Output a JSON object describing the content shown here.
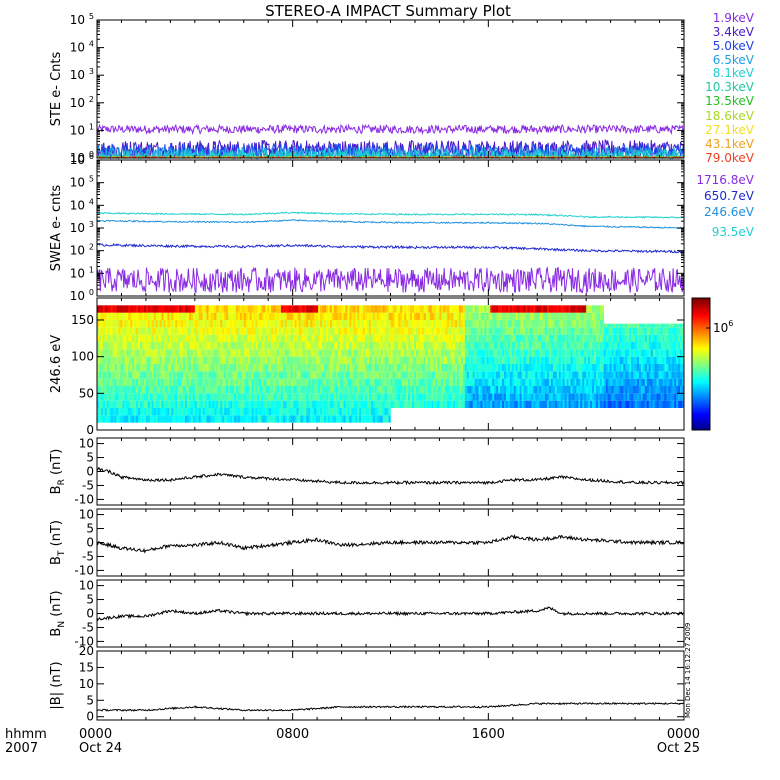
{
  "title": "STEREO-A IMPACT Summary Plot",
  "footer": {
    "row1": "hhmm",
    "row2": "2007",
    "tick_labels": [
      {
        "t": 0,
        "time": "0000",
        "date": "Oct 24"
      },
      {
        "t": 8,
        "time": "0800",
        "date": ""
      },
      {
        "t": 16,
        "time": "1600",
        "date": ""
      },
      {
        "t": 24,
        "time": "0000",
        "date": "Oct 25"
      }
    ]
  },
  "timestamp": "Mon Dec 14 16:12:27 2009",
  "colors": {
    "line": "#000000",
    "axis": "#000000"
  },
  "chart_data": [
    {
      "id": "ste",
      "type": "line",
      "ylabel": "STE e- Cnts",
      "yscale": "log",
      "ylim": [
        1,
        100000
      ],
      "yticks": [
        {
          "v": 1,
          "base": "10",
          "exp": "0"
        },
        {
          "v": 10,
          "base": "10",
          "exp": "1"
        },
        {
          "v": 100,
          "base": "10",
          "exp": "2"
        },
        {
          "v": 1000,
          "base": "10",
          "exp": "3"
        },
        {
          "v": 10000,
          "base": "10",
          "exp": "4"
        },
        {
          "v": 100000,
          "base": "10",
          "exp": "5"
        }
      ],
      "xlim": [
        0,
        24
      ],
      "series": [
        {
          "name": "1.9keV",
          "color": "#8a2be2",
          "level": 11,
          "noise": 0.15
        },
        {
          "name": "3.4keV",
          "color": "#4b18c8",
          "level": 2.0,
          "noise": 0.35
        },
        {
          "name": "5.0keV",
          "color": "#2040e8",
          "level": 1.6,
          "noise": 0.35
        },
        {
          "name": "6.5keV",
          "color": "#1ea0e0",
          "level": 1.25,
          "noise": 0.3
        },
        {
          "name": "8.1keV",
          "color": "#20d0d0",
          "level": 1.1,
          "noise": 0.25
        },
        {
          "name": "10.3keV",
          "color": "#20c8a0",
          "level": 1.0,
          "noise": 0.1
        },
        {
          "name": "13.5keV",
          "color": "#20c020",
          "level": 1.0,
          "noise": 0.05
        },
        {
          "name": "18.6keV",
          "color": "#a8d820",
          "level": 1.0,
          "noise": 0.05
        },
        {
          "name": "27.1keV",
          "color": "#f0e020",
          "level": 1.0,
          "noise": 0.05
        },
        {
          "name": "43.1keV",
          "color": "#f0a020",
          "level": 1.0,
          "noise": 0.05
        },
        {
          "name": "79.0keV",
          "color": "#f04020",
          "level": 1.0,
          "noise": 0.05
        }
      ]
    },
    {
      "id": "swea",
      "type": "line",
      "ylabel": "SWEA e- cnts",
      "yscale": "log",
      "ylim": [
        1,
        1000000
      ],
      "yticks": [
        {
          "v": 1,
          "base": "10",
          "exp": "0"
        },
        {
          "v": 10,
          "base": "10",
          "exp": "1"
        },
        {
          "v": 100,
          "base": "10",
          "exp": "2"
        },
        {
          "v": 1000,
          "base": "10",
          "exp": "3"
        },
        {
          "v": 10000,
          "base": "10",
          "exp": "4"
        },
        {
          "v": 100000,
          "base": "10",
          "exp": "5"
        },
        {
          "v": 1000000,
          "base": "10",
          "exp": "6"
        }
      ],
      "xlim": [
        0,
        24
      ],
      "series": [
        {
          "name": "1716.8eV",
          "color": "#8a2be2",
          "points": [
            [
              0,
              5
            ],
            [
              3,
              5
            ],
            [
              6,
              5
            ],
            [
              9,
              5
            ],
            [
              12,
              5
            ],
            [
              15,
              5
            ],
            [
              18,
              5
            ],
            [
              21,
              5
            ],
            [
              24,
              5
            ]
          ],
          "noise": 0.55
        },
        {
          "name": "650.7eV",
          "color": "#1e2ad0",
          "points": [
            [
              0,
              180
            ],
            [
              3,
              160
            ],
            [
              6,
              150
            ],
            [
              8,
              170
            ],
            [
              10,
              150
            ],
            [
              13,
              140
            ],
            [
              16,
              140
            ],
            [
              18,
              120
            ],
            [
              20,
              100
            ],
            [
              22,
              95
            ],
            [
              24,
              90
            ]
          ],
          "noise": 0.05
        },
        {
          "name": "246.6eV",
          "color": "#1e90e0",
          "points": [
            [
              0,
              2100
            ],
            [
              3,
              1900
            ],
            [
              6,
              1800
            ],
            [
              8,
              2200
            ],
            [
              10,
              1900
            ],
            [
              13,
              1700
            ],
            [
              16,
              1700
            ],
            [
              18,
              1600
            ],
            [
              20,
              1200
            ],
            [
              22,
              1100
            ],
            [
              24,
              1000
            ]
          ],
          "noise": 0.03
        },
        {
          "name": "93.5eV",
          "color": "#20d0d0",
          "points": [
            [
              0,
              4500
            ],
            [
              3,
              4200
            ],
            [
              6,
              4000
            ],
            [
              8,
              4800
            ],
            [
              10,
              4200
            ],
            [
              13,
              4000
            ],
            [
              16,
              4000
            ],
            [
              18,
              3900
            ],
            [
              20,
              3100
            ],
            [
              22,
              3000
            ],
            [
              24,
              2900
            ]
          ],
          "noise": 0.03
        }
      ]
    },
    {
      "id": "pad",
      "type": "heatmap",
      "ylabel": "246.6 eV",
      "ylim": [
        0,
        180
      ],
      "yticks": [
        0,
        50,
        100,
        150
      ],
      "xlim": [
        0,
        24
      ],
      "colorbar_label": "10",
      "colorbar_exp": "6"
    },
    {
      "id": "br",
      "type": "line",
      "ylabel_main": "B",
      "ylabel_sub": "R",
      "ylabel_unit": "(nT)",
      "ylim": [
        -12,
        12
      ],
      "yticks": [
        -10,
        -5,
        0,
        5,
        10
      ],
      "xlim": [
        0,
        24
      ],
      "series": [
        {
          "points": [
            [
              0,
              1
            ],
            [
              0.5,
              0
            ],
            [
              1,
              -2
            ],
            [
              2,
              -3
            ],
            [
              3,
              -3
            ],
            [
              4,
              -2
            ],
            [
              5,
              -1
            ],
            [
              6,
              -2
            ],
            [
              8,
              -3
            ],
            [
              10,
              -4
            ],
            [
              12,
              -4
            ],
            [
              14,
              -4
            ],
            [
              16,
              -4
            ],
            [
              17,
              -3
            ],
            [
              18,
              -3
            ],
            [
              19,
              -2
            ],
            [
              20,
              -3
            ],
            [
              22,
              -4
            ],
            [
              24,
              -4
            ]
          ],
          "noise": 0.5
        }
      ]
    },
    {
      "id": "bt",
      "type": "line",
      "ylabel_main": "B",
      "ylabel_sub": "T",
      "ylabel_unit": "(nT)",
      "ylim": [
        -12,
        12
      ],
      "yticks": [
        -10,
        -5,
        0,
        5,
        10
      ],
      "xlim": [
        0,
        24
      ],
      "series": [
        {
          "points": [
            [
              0,
              0
            ],
            [
              1,
              -2
            ],
            [
              2,
              -3
            ],
            [
              3,
              -1
            ],
            [
              4,
              -1
            ],
            [
              5,
              0
            ],
            [
              6,
              -2
            ],
            [
              7,
              -1
            ],
            [
              8,
              0
            ],
            [
              9,
              1
            ],
            [
              10,
              -1
            ],
            [
              12,
              0
            ],
            [
              14,
              0
            ],
            [
              16,
              0
            ],
            [
              17,
              2
            ],
            [
              18,
              1
            ],
            [
              19,
              2
            ],
            [
              20,
              1
            ],
            [
              22,
              0
            ],
            [
              24,
              0
            ]
          ],
          "noise": 0.6
        }
      ]
    },
    {
      "id": "bn",
      "type": "line",
      "ylabel_main": "B",
      "ylabel_sub": "N",
      "ylabel_unit": "(nT)",
      "ylim": [
        -12,
        12
      ],
      "yticks": [
        -10,
        -5,
        0,
        5,
        10
      ],
      "xlim": [
        0,
        24
      ],
      "series": [
        {
          "points": [
            [
              0,
              -2
            ],
            [
              1,
              -1
            ],
            [
              2,
              -1
            ],
            [
              3,
              1
            ],
            [
              4,
              0
            ],
            [
              5,
              1
            ],
            [
              6,
              0
            ],
            [
              8,
              0
            ],
            [
              10,
              0
            ],
            [
              12,
              0
            ],
            [
              14,
              0
            ],
            [
              16,
              0
            ],
            [
              18,
              1
            ],
            [
              18.5,
              2
            ],
            [
              19,
              0
            ],
            [
              20,
              0
            ],
            [
              22,
              0
            ],
            [
              24,
              0
            ]
          ],
          "noise": 0.5
        }
      ]
    },
    {
      "id": "bmag",
      "type": "line",
      "ylabel_main": "|B|",
      "ylabel_unit": "(nT)",
      "ylim": [
        -1,
        20
      ],
      "yticks": [
        0,
        5,
        10,
        15,
        20
      ],
      "xlim": [
        0,
        24
      ],
      "series": [
        {
          "points": [
            [
              0,
              2
            ],
            [
              2,
              2
            ],
            [
              4,
              3
            ],
            [
              6,
              2
            ],
            [
              8,
              2
            ],
            [
              10,
              3
            ],
            [
              12,
              3
            ],
            [
              14,
              3
            ],
            [
              16,
              3
            ],
            [
              18,
              4
            ],
            [
              20,
              4
            ],
            [
              22,
              4
            ],
            [
              24,
              4
            ]
          ],
          "noise": 0.25
        }
      ]
    }
  ]
}
